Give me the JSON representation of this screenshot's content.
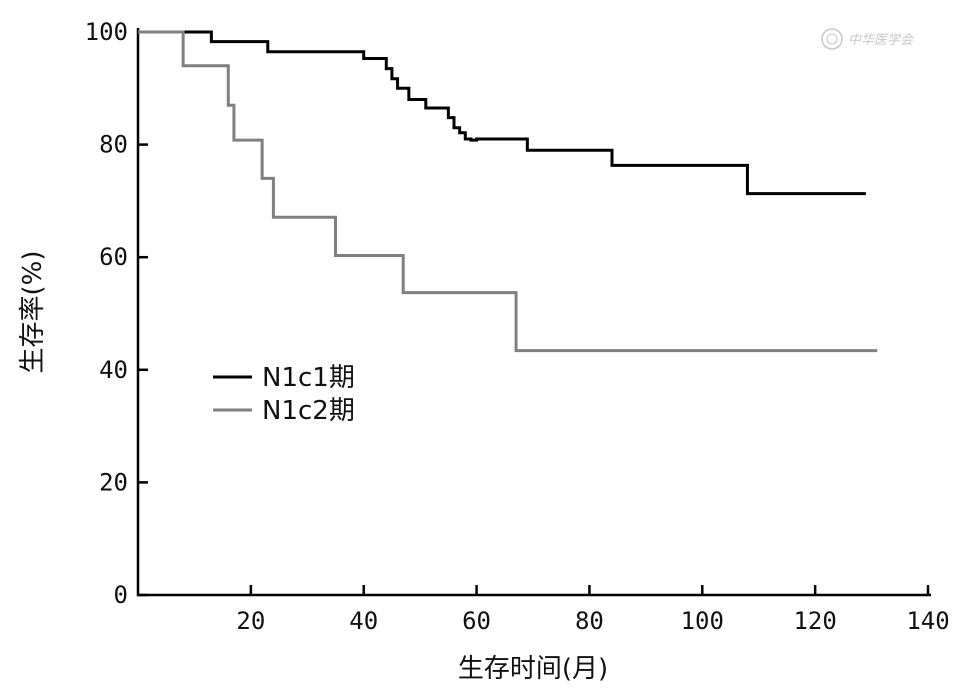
{
  "chart_data": {
    "type": "line",
    "step": true,
    "xlabel": "生存时间(月)",
    "ylabel": "生存率(%)",
    "xlim": [
      0,
      140
    ],
    "ylim": [
      0,
      100
    ],
    "xticks": [
      20,
      40,
      60,
      80,
      100,
      120,
      140
    ],
    "yticks": [
      0,
      20,
      40,
      60,
      80,
      100
    ],
    "grid": false,
    "legend_position": "center-left",
    "watermark": "中华医学会",
    "series": [
      {
        "name": "N1c1期",
        "color": "#000000",
        "x": [
          0,
          13,
          23,
          40,
          44,
          45,
          46,
          48,
          51,
          55,
          56,
          57,
          58,
          59,
          60,
          69,
          84,
          108,
          129
        ],
        "y": [
          100,
          98.3,
          96.5,
          95.3,
          93.5,
          91.7,
          90.0,
          88.0,
          86.5,
          84.8,
          83.0,
          82.1,
          81.0,
          80.8,
          81.0,
          79.0,
          76.3,
          71.3,
          71.3
        ]
      },
      {
        "name": "N1c2期",
        "color": "#808080",
        "x": [
          0,
          8,
          16,
          17,
          22,
          24,
          35,
          47,
          67,
          131
        ],
        "y": [
          100,
          94.0,
          87.0,
          80.8,
          74.0,
          67.1,
          60.3,
          53.7,
          43.4,
          43.4
        ]
      }
    ]
  }
}
